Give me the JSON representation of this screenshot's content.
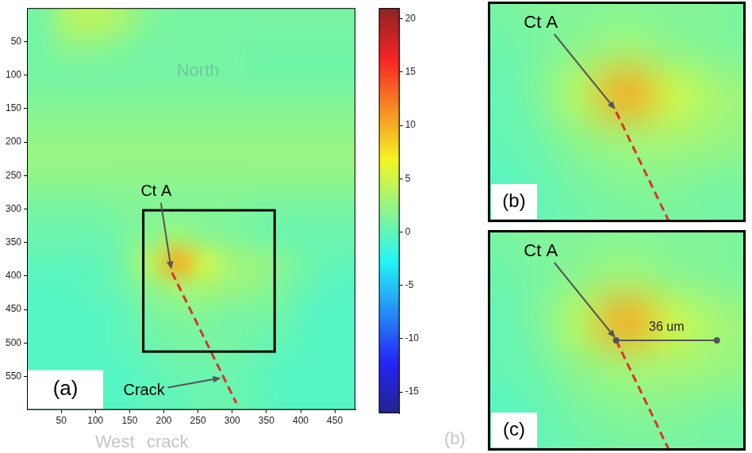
{
  "chart_data": {
    "type": "heatmap",
    "xlim": [
      0,
      480
    ],
    "ylim": [
      0,
      600
    ],
    "xticks": [
      50,
      100,
      150,
      200,
      250,
      300,
      350,
      400,
      450
    ],
    "yticks": [
      50,
      100,
      150,
      200,
      250,
      300,
      350,
      400,
      450,
      500,
      550
    ],
    "cells": [
      [
        1,
        3.5,
        4,
        3,
        1.5,
        1,
        1,
        1,
        1,
        1,
        1,
        1
      ],
      [
        1,
        2,
        2,
        1.5,
        1,
        1,
        1,
        1,
        0.8,
        0.8,
        0.8,
        0.8
      ],
      [
        1,
        1,
        1,
        1,
        1,
        1,
        1,
        1,
        0.8,
        0.8,
        0.8,
        0.8
      ],
      [
        1.5,
        1.5,
        1.5,
        1.5,
        1.5,
        1.5,
        1.5,
        1.5,
        1.5,
        1.5,
        1.5,
        1.5
      ],
      [
        2,
        2,
        2,
        2,
        2,
        2,
        2,
        2,
        2,
        2,
        2,
        2
      ],
      [
        2.5,
        2.5,
        2.5,
        2.5,
        2.5,
        2.5,
        2.5,
        2.5,
        2.5,
        2.5,
        2.5,
        2.5
      ],
      [
        2,
        2,
        2,
        2,
        2,
        2,
        2,
        2,
        2,
        2,
        2,
        2
      ],
      [
        1,
        1,
        1,
        1.5,
        1.5,
        1.5,
        1.5,
        1.5,
        1,
        1,
        1,
        1
      ],
      [
        0.5,
        0.5,
        0.5,
        1,
        2,
        3,
        2,
        1.5,
        1,
        0.5,
        0.5,
        0.5
      ],
      [
        0,
        0,
        0,
        1,
        4,
        10,
        5,
        3,
        2.5,
        1.5,
        0.5,
        0
      ],
      [
        -0.5,
        -0.5,
        0,
        0.5,
        2,
        3,
        3,
        2.5,
        2,
        1,
        0,
        -0.5
      ],
      [
        -0.5,
        -0.5,
        -0.5,
        0,
        1,
        1.5,
        1.5,
        1,
        1,
        0.5,
        -0.5,
        -0.5
      ],
      [
        -0.5,
        -0.5,
        -0.5,
        0,
        0.5,
        1,
        1,
        1,
        0.5,
        0,
        -0.5,
        -0.5
      ],
      [
        -0.5,
        -0.5,
        -0.5,
        -0.5,
        0,
        0.5,
        0.5,
        0.5,
        0,
        -0.5,
        -0.5,
        -0.5
      ],
      [
        -0.5,
        -0.5,
        -0.5,
        -0.5,
        0,
        0,
        0.5,
        0.5,
        0,
        -0.5,
        -0.5,
        -0.5
      ]
    ],
    "colorbar": {
      "range": [
        -17,
        21
      ],
      "ticks": [
        20,
        15,
        10,
        5,
        0,
        -5,
        -10,
        -15
      ]
    },
    "crack": {
      "x": [
        212,
        306
      ],
      "y": [
        395,
        590
      ],
      "color": "#e0312b",
      "line_style": "dashed"
    },
    "zoom_box": {
      "x": [
        170,
        362
      ],
      "y": [
        302,
        513
      ]
    },
    "annotations": [
      {
        "text": "Ct A",
        "x": 212,
        "y": 395
      },
      {
        "text": "Crack",
        "x": 287,
        "y": 550
      }
    ],
    "panel_label": "(a)",
    "faint_texts": {
      "north": "North",
      "west": "West",
      "crack": "crack",
      "panel": "(b)"
    }
  },
  "insets": [
    {
      "panel_label": "(b)",
      "xlim": [
        107,
        318
      ],
      "ylim": [
        305,
        485
      ],
      "annotation": {
        "text": "Ct A",
        "x": 212,
        "y": 395
      }
    },
    {
      "panel_label": "(c)",
      "xlim": [
        107,
        318
      ],
      "ylim": [
        305,
        485
      ],
      "annotation": {
        "text": "Ct A",
        "x": 212,
        "y": 395
      },
      "scale_bar": {
        "label": "36 um",
        "x": 212,
        "y": 395,
        "length": 84
      }
    }
  ]
}
